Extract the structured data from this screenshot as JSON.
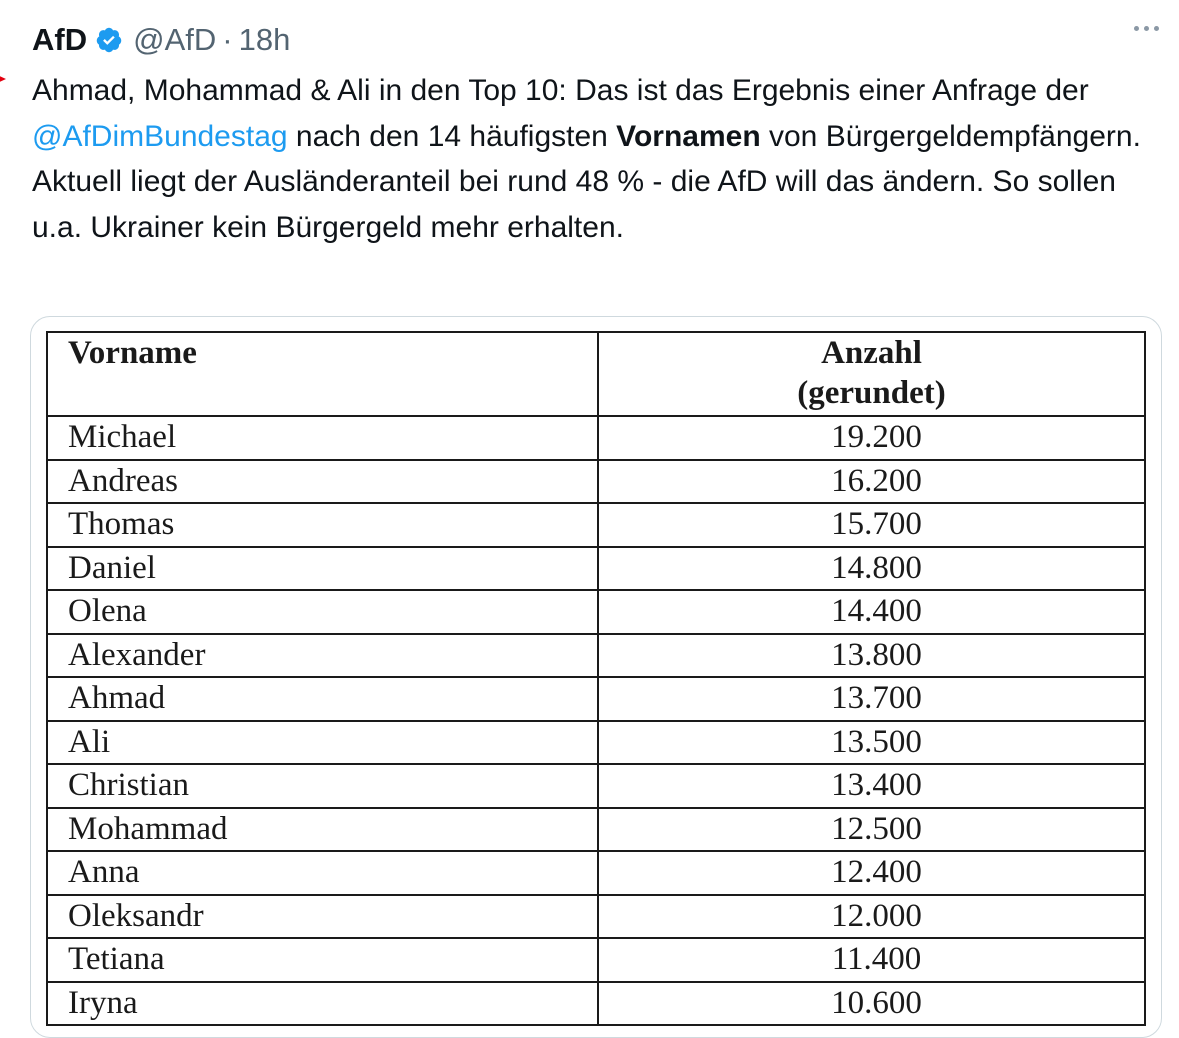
{
  "tweet": {
    "display_name": "AfD",
    "handle": "@AfD",
    "separator": "·",
    "time": "18h",
    "brand_color": "#e3000f",
    "link_color": "#1d9bf0",
    "text_part1": "Ahmad, Mohammad & Ali in den Top 10: Das ist das Ergebnis einer Anfrage der ",
    "mention": "@AfDimBundestag",
    "text_part2": " nach den 14 häufigsten ",
    "text_bold": "Vornamen",
    "text_part3": " von Bürgergeldempfängern. Aktuell liegt der Ausländeranteil bei rund 48 % - die AfD will das ändern. So sollen u.a. Ukrainer kein Bürgergeld mehr erhalten."
  },
  "table": {
    "header_name": "Vorname",
    "header_count_line1": "Anzahl",
    "header_count_line2": "(gerundet)",
    "rows": [
      {
        "name": "Michael",
        "count": "19.200"
      },
      {
        "name": "Andreas",
        "count": "16.200"
      },
      {
        "name": "Thomas",
        "count": "15.700"
      },
      {
        "name": "Daniel",
        "count": "14.800"
      },
      {
        "name": "Olena",
        "count": "14.400"
      },
      {
        "name": "Alexander",
        "count": "13.800"
      },
      {
        "name": "Ahmad",
        "count": "13.700"
      },
      {
        "name": "Ali",
        "count": "13.500"
      },
      {
        "name": "Christian",
        "count": "13.400"
      },
      {
        "name": "Mohammad",
        "count": "12.500"
      },
      {
        "name": "Anna",
        "count": "12.400"
      },
      {
        "name": "Oleksandr",
        "count": "12.000"
      },
      {
        "name": "Tetiana",
        "count": "11.400"
      },
      {
        "name": "Iryna",
        "count": "10.600"
      }
    ]
  }
}
